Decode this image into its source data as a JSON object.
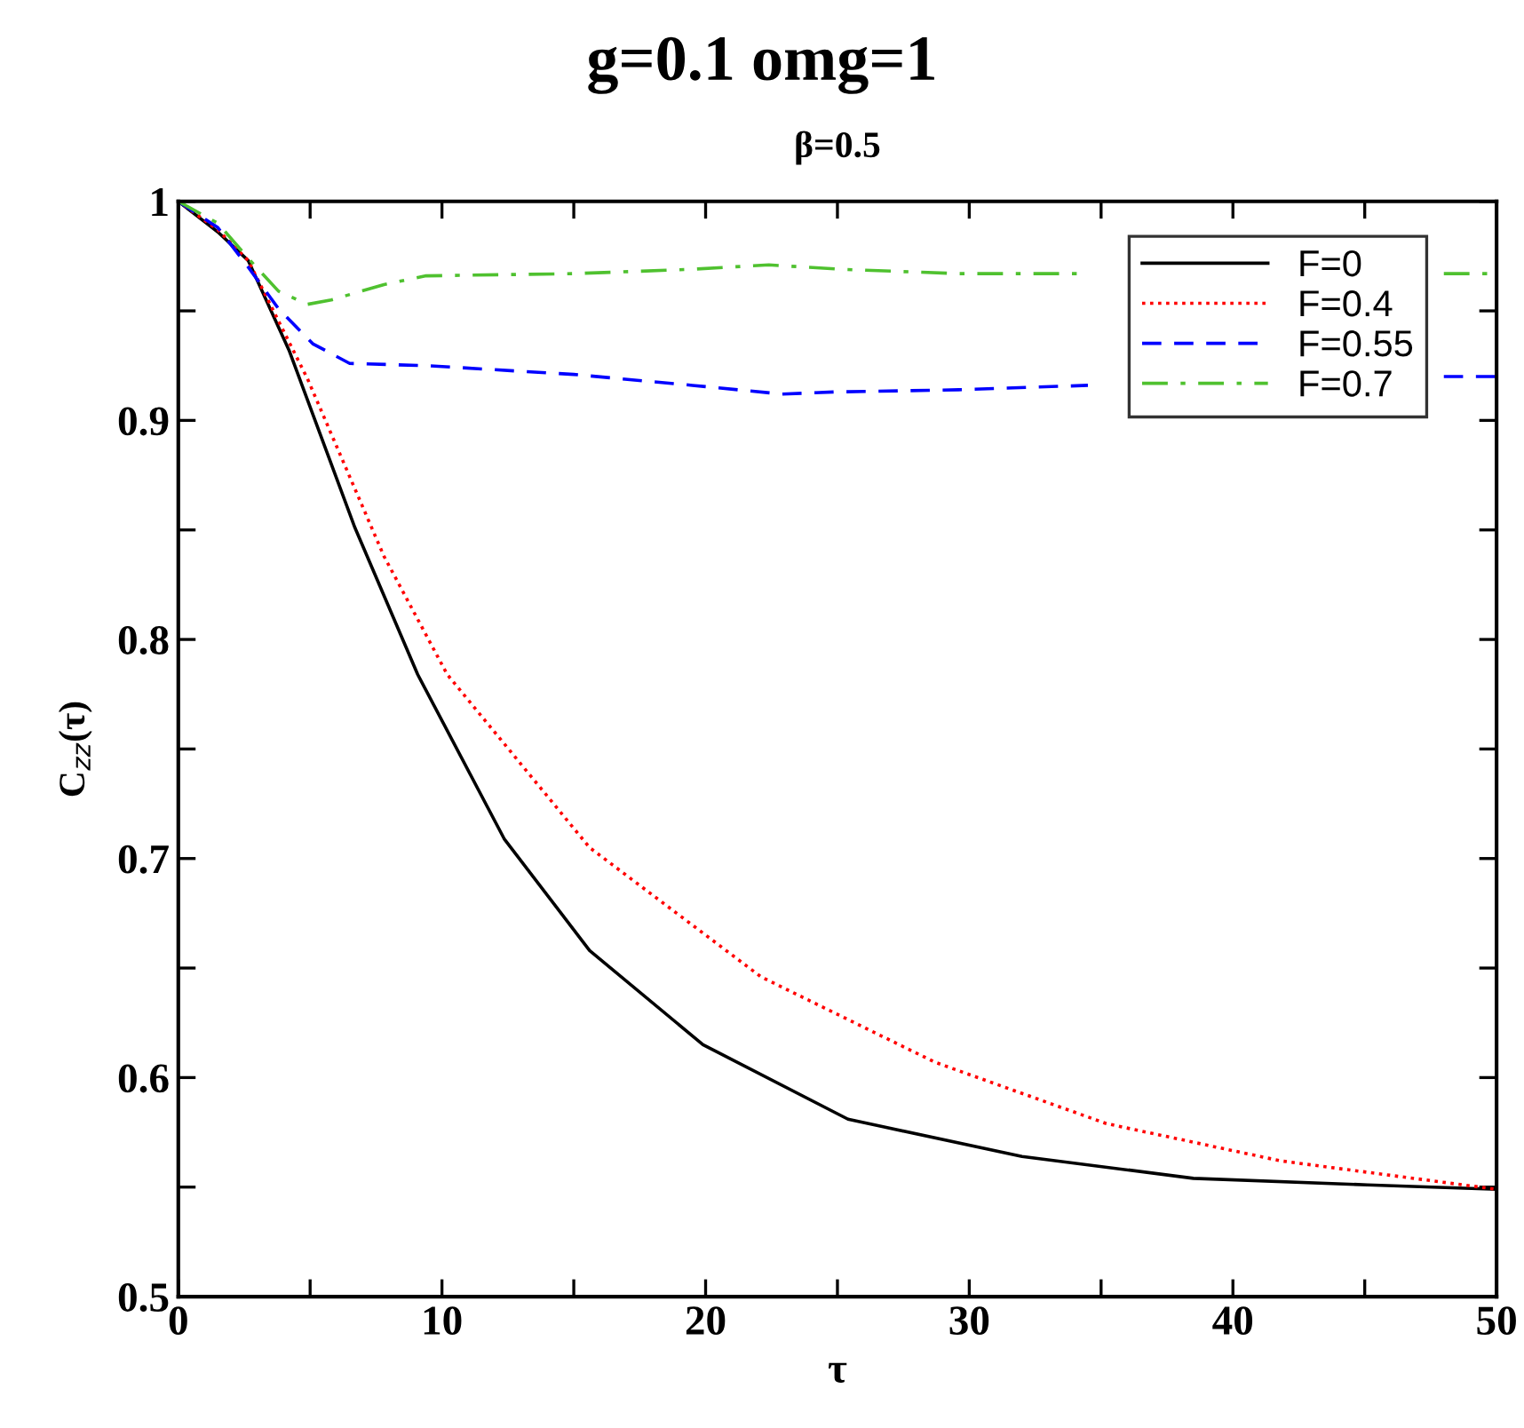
{
  "chart_data": {
    "type": "line",
    "title": "g=0.1 omg=1",
    "subtitle": "β=0.5",
    "xlabel": "τ",
    "ylabel": "C$_{zz}$(τ)",
    "xlim": [
      0,
      50
    ],
    "ylim": [
      0.5,
      1
    ],
    "xticks": [
      0,
      {
        "value": 5,
        "label": null
      },
      10,
      {
        "value": 15,
        "label": null
      },
      20,
      {
        "value": 25,
        "label": null
      },
      30,
      {
        "value": 35,
        "label": null
      },
      40,
      {
        "value": 45,
        "label": null
      },
      50
    ],
    "yticks": [
      0.5,
      {
        "value": 0.55,
        "label": null
      },
      0.6,
      {
        "value": 0.65,
        "label": null
      },
      0.7,
      {
        "value": 0.75,
        "label": null
      },
      0.8,
      {
        "value": 0.85,
        "label": null
      },
      0.9,
      {
        "value": 0.95,
        "label": null
      },
      1
    ],
    "grid": false,
    "legend": "top right",
    "marker": "none",
    "series": [
      {
        "name": "F=0",
        "color": "#000000",
        "line_style": "solid",
        "x": [
          0,
          1.5,
          2.65,
          4.2,
          6.7,
          9.08,
          12.36,
          15.6,
          19.9,
          25.4,
          32.0,
          38.5,
          45.1,
          50
        ],
        "values": [
          1,
          0.986,
          0.973,
          0.932,
          0.851,
          0.784,
          0.709,
          0.658,
          0.615,
          0.581,
          0.564,
          0.554,
          0.551,
          0.549
        ]
      },
      {
        "name": "F=0.4",
        "color": "#ff0000",
        "line_style": "dotted",
        "x": [
          0,
          1.5,
          2.65,
          4.9,
          7.8,
          10.2,
          15.6,
          22.1,
          28.7,
          35.2,
          41.8,
          50
        ],
        "values": [
          1,
          0.987,
          0.973,
          0.919,
          0.838,
          0.784,
          0.705,
          0.646,
          0.607,
          0.579,
          0.562,
          0.549
        ]
      },
      {
        "name": "F=0.55",
        "color": "#0000ff",
        "line_style": "dashed",
        "x": [
          0,
          1.5,
          2.65,
          3.8,
          5.1,
          6.5,
          9.4,
          15.0,
          19.5,
          22.9,
          24.9,
          29.6,
          34.5,
          41,
          48.0,
          50
        ],
        "values": [
          1,
          0.988,
          0.97,
          0.951,
          0.935,
          0.926,
          0.925,
          0.921,
          0.916,
          0.912,
          0.913,
          0.914,
          0.916,
          null,
          0.92,
          0.92
        ]
      },
      {
        "name": "F=0.7",
        "color": "#4fc12f",
        "line_style": "dashdot",
        "x": [
          0,
          1.5,
          2.65,
          3.8,
          4.9,
          5.8,
          7.8,
          9.4,
          15.0,
          19.5,
          22.4,
          25.1,
          29.6,
          34.5,
          41,
          48.0,
          50
        ],
        "values": [
          1,
          0.99,
          0.974,
          0.959,
          0.953,
          0.955,
          0.962,
          0.966,
          0.967,
          0.969,
          0.971,
          0.969,
          0.967,
          0.967,
          null,
          0.967,
          0.967
        ]
      }
    ]
  }
}
